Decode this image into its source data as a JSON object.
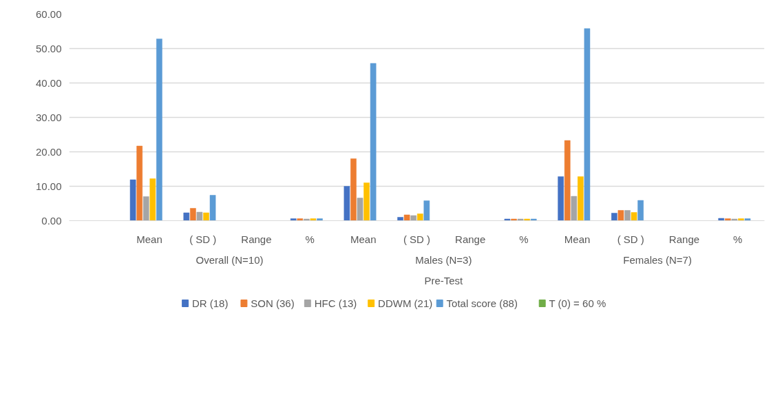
{
  "chart_data": {
    "type": "bar",
    "categories": [
      null,
      "Mean",
      "( SD )",
      "Range",
      "%",
      "Mean",
      "( SD )",
      "Range",
      "%",
      "Mean",
      "( SD )",
      "Range",
      "%"
    ],
    "annotations": [
      "Overall (N=10)",
      "Males (N=3)",
      "Females (N=7)",
      "Pre-Test"
    ],
    "series": [
      {
        "name": "DR (18)",
        "color": "#4472c4",
        "values": [
          null,
          11.9,
          2.3,
          null,
          0.6,
          10.0,
          1.0,
          null,
          0.5,
          12.8,
          2.2,
          null,
          0.7
        ]
      },
      {
        "name": "SON (36)",
        "color": "#ed7d31",
        "values": [
          null,
          21.7,
          3.6,
          null,
          0.6,
          18.0,
          1.7,
          null,
          0.5,
          23.3,
          3.0,
          null,
          0.6
        ]
      },
      {
        "name": "HFC (13)",
        "color": "#a5a5a5",
        "values": [
          null,
          7.0,
          2.5,
          null,
          0.5,
          6.6,
          1.5,
          null,
          0.5,
          7.1,
          3.0,
          null,
          0.5
        ]
      },
      {
        "name": "DDWM (21)",
        "color": "#ffc000",
        "values": [
          null,
          12.2,
          2.3,
          null,
          0.6,
          11.0,
          2.0,
          null,
          0.5,
          12.8,
          2.4,
          null,
          0.6
        ]
      },
      {
        "name": "Total score (88)",
        "color": "#5b9bd5",
        "values": [
          null,
          52.8,
          7.4,
          null,
          0.6,
          45.7,
          5.8,
          null,
          0.5,
          55.8,
          5.9,
          null,
          0.6
        ]
      },
      {
        "name": "T (0)     =   60 %",
        "color": "#70ad47",
        "values": [
          null,
          null,
          null,
          null,
          null,
          null,
          null,
          null,
          null,
          null,
          null,
          null,
          null
        ]
      }
    ],
    "ylim": [
      0,
      60
    ],
    "yticks": [
      {
        "value": 0,
        "label": "0.00"
      },
      {
        "value": 10,
        "label": "10.00"
      },
      {
        "value": 20,
        "label": "20.00"
      },
      {
        "value": 30,
        "label": "30.00"
      },
      {
        "value": 40,
        "label": "40.00"
      },
      {
        "value": 50,
        "label": "50.00"
      },
      {
        "value": 60,
        "label": "60.00"
      }
    ],
    "grid": "y",
    "legend": "bottom"
  }
}
